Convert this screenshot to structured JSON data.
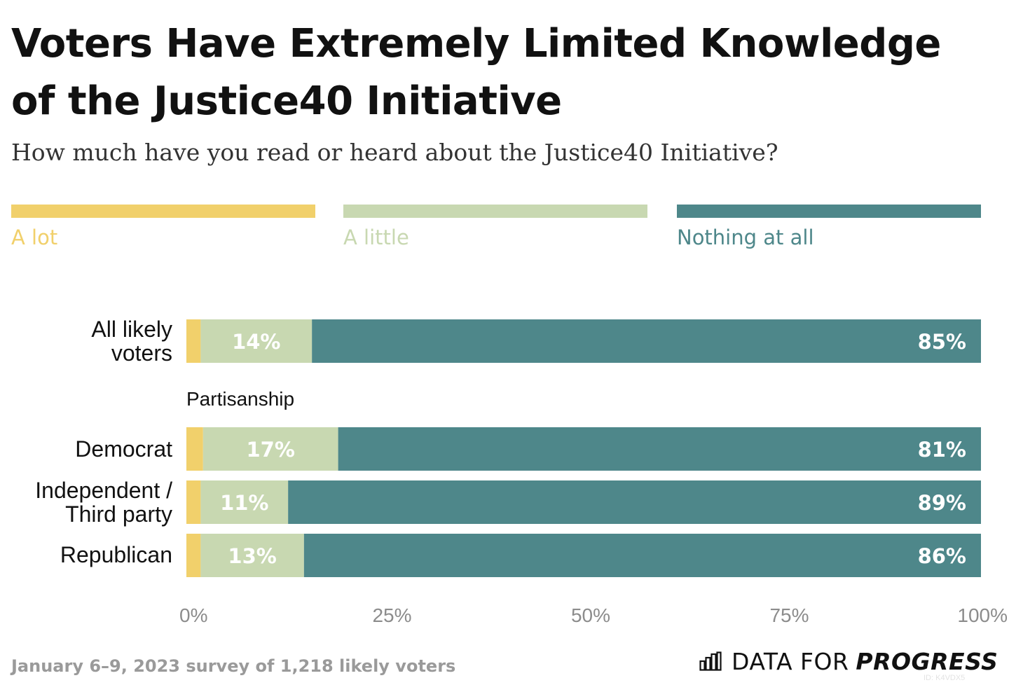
{
  "header": {
    "title": "Voters Have Extremely Limited Knowledge of the Justice40 Initiative",
    "subtitle": "How much have you read or heard about the Justice40 Initiative?"
  },
  "legend": [
    {
      "label": "A lot",
      "color": "#f1d06b"
    },
    {
      "label": "A little",
      "color": "#c8d8b1"
    },
    {
      "label": "Nothing at all",
      "color": "#4e878a"
    }
  ],
  "chart_data": {
    "type": "bar",
    "orientation": "horizontal",
    "stacked": true,
    "title": "Voters Have Extremely Limited Knowledge of the Justice40 Initiative",
    "subtitle": "How much have you read or heard about the Justice40 Initiative?",
    "categories": [
      "All likely voters",
      "Democrat",
      "Independent / Third party",
      "Republican"
    ],
    "category_labels": [
      "All likely\nvoters",
      "Democrat",
      "Independent /\nThird party",
      "Republican"
    ],
    "group_label": "Partisanship",
    "series": [
      {
        "name": "A lot",
        "color": "#f1d06b",
        "values": [
          1.8,
          2.1,
          1.8,
          1.8
        ],
        "labels": [
          "",
          "",
          "",
          ""
        ]
      },
      {
        "name": "A little",
        "color": "#c8d8b1",
        "values": [
          14,
          17,
          11,
          13
        ],
        "labels": [
          "14%",
          "17%",
          "11%",
          "13%"
        ]
      },
      {
        "name": "Nothing at all",
        "color": "#4e878a",
        "values": [
          85,
          81,
          89,
          86
        ],
        "labels": [
          "85%",
          "81%",
          "89%",
          "86%"
        ]
      }
    ],
    "xlim": [
      0,
      100
    ],
    "x_ticks": [
      0,
      25,
      50,
      75,
      100
    ],
    "x_tick_labels": [
      "0%",
      "25%",
      "50%",
      "75%",
      "100%"
    ],
    "grid": false,
    "legend_position": "top"
  },
  "footer": {
    "note": "January 6–9, 2023 survey of 1,218 likely voters",
    "brand_name": "DATA FOR",
    "brand_strong": "PROGRESS",
    "id_tag": "ID: K4VDX5"
  }
}
